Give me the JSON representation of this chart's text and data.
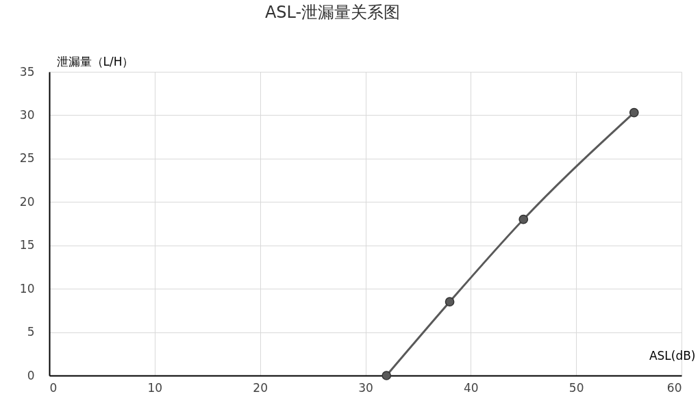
{
  "chart_data": {
    "type": "line",
    "title": "ASL-泄漏量关系图",
    "xlabel": "ASL(dB)",
    "ylabel": "泄漏量（L/H）",
    "x": [
      32,
      38,
      45,
      55.5
    ],
    "series": [
      {
        "color": "#595959",
        "values": [
          0,
          8.5,
          18,
          30.3
        ]
      }
    ],
    "xlim": [
      0,
      60
    ],
    "xticks": [
      0,
      10,
      20,
      30,
      40,
      50,
      60
    ],
    "ylim": [
      0,
      35
    ],
    "yticks": [
      0,
      5,
      10,
      15,
      20,
      25,
      30,
      35
    ],
    "grid": true,
    "marker": "circle",
    "line_style": "solid"
  }
}
